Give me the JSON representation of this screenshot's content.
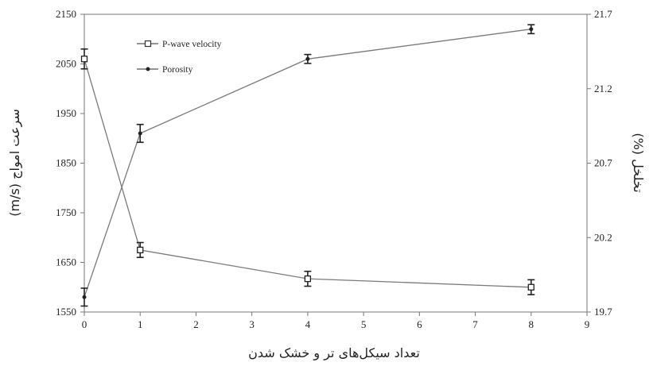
{
  "chart_data": {
    "type": "line",
    "xlabel": "تعداد سیکل‌های تر و خشک شدن",
    "ylabel_left": "سرعت امواج (m/s)",
    "ylabel_right": "تخلخل (%)",
    "xlim": [
      0,
      9
    ],
    "x_ticks": [
      "0",
      "1",
      "2",
      "3",
      "4",
      "5",
      "6",
      "7",
      "8",
      "9"
    ],
    "ylim_left": [
      1550,
      2150
    ],
    "y_left_ticks": [
      "1550",
      "1650",
      "1750",
      "1850",
      "1950",
      "2050",
      "2150"
    ],
    "ylim_right": [
      19.7,
      21.7
    ],
    "y_right_ticks": [
      "19.7",
      "20.2",
      "20.7",
      "21.2",
      "21.7"
    ],
    "grid": false,
    "legend_position": "top-left",
    "series": [
      {
        "name": "P-wave velocity",
        "axis": "left",
        "marker": "open-square",
        "x": [
          0,
          1,
          4,
          8
        ],
        "y": [
          2060,
          1675,
          1617,
          1600
        ],
        "err": [
          20,
          15,
          15,
          15
        ]
      },
      {
        "name": "Porosity",
        "axis": "right",
        "marker": "filled-circle",
        "x": [
          0,
          1,
          4,
          8
        ],
        "y": [
          19.8,
          20.9,
          21.4,
          21.6
        ],
        "err": [
          0.06,
          0.06,
          0.03,
          0.03
        ]
      }
    ]
  }
}
